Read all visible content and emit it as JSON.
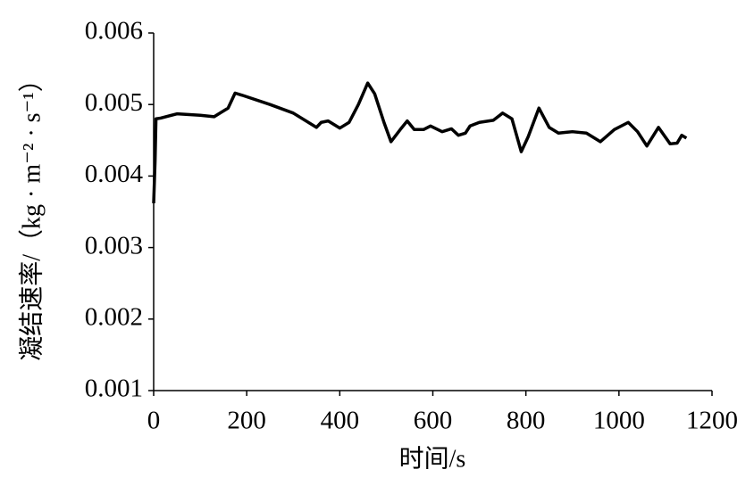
{
  "chart_data": {
    "type": "line",
    "x_label": "时间/s",
    "y_label": "凝结速率/（kg · m⁻² · s⁻¹）",
    "xlim": [
      0,
      1200
    ],
    "xticks": [
      0,
      200,
      400,
      600,
      800,
      1000,
      1200
    ],
    "ylim": [
      0.001,
      0.006
    ],
    "yticks": [
      0.001,
      0.002,
      0.003,
      0.004,
      0.005,
      0.006
    ],
    "grid": false,
    "series": [
      {
        "color": "#000000",
        "x": [
          0,
          3,
          5,
          15,
          50,
          100,
          130,
          160,
          175,
          190,
          250,
          300,
          350,
          360,
          375,
          400,
          420,
          440,
          460,
          475,
          495,
          510,
          530,
          545,
          560,
          580,
          595,
          620,
          640,
          655,
          670,
          680,
          700,
          730,
          750,
          770,
          790,
          805,
          828,
          850,
          870,
          900,
          930,
          960,
          990,
          1020,
          1040,
          1060,
          1085,
          1110,
          1125,
          1135,
          1145
        ],
        "values": [
          0.00362,
          0.0042,
          0.0048,
          0.00481,
          0.00487,
          0.00485,
          0.00483,
          0.00495,
          0.00516,
          0.00513,
          0.005,
          0.00488,
          0.00468,
          0.00475,
          0.00477,
          0.00467,
          0.00475,
          0.005,
          0.0053,
          0.00515,
          0.00475,
          0.00448,
          0.00465,
          0.00477,
          0.00465,
          0.00465,
          0.0047,
          0.00462,
          0.00466,
          0.00457,
          0.0046,
          0.0047,
          0.00475,
          0.00478,
          0.00488,
          0.0048,
          0.00434,
          0.00455,
          0.00495,
          0.00468,
          0.0046,
          0.00462,
          0.0046,
          0.00448,
          0.00465,
          0.00475,
          0.00462,
          0.00442,
          0.00468,
          0.00445,
          0.00446,
          0.00457,
          0.00453
        ]
      }
    ]
  }
}
